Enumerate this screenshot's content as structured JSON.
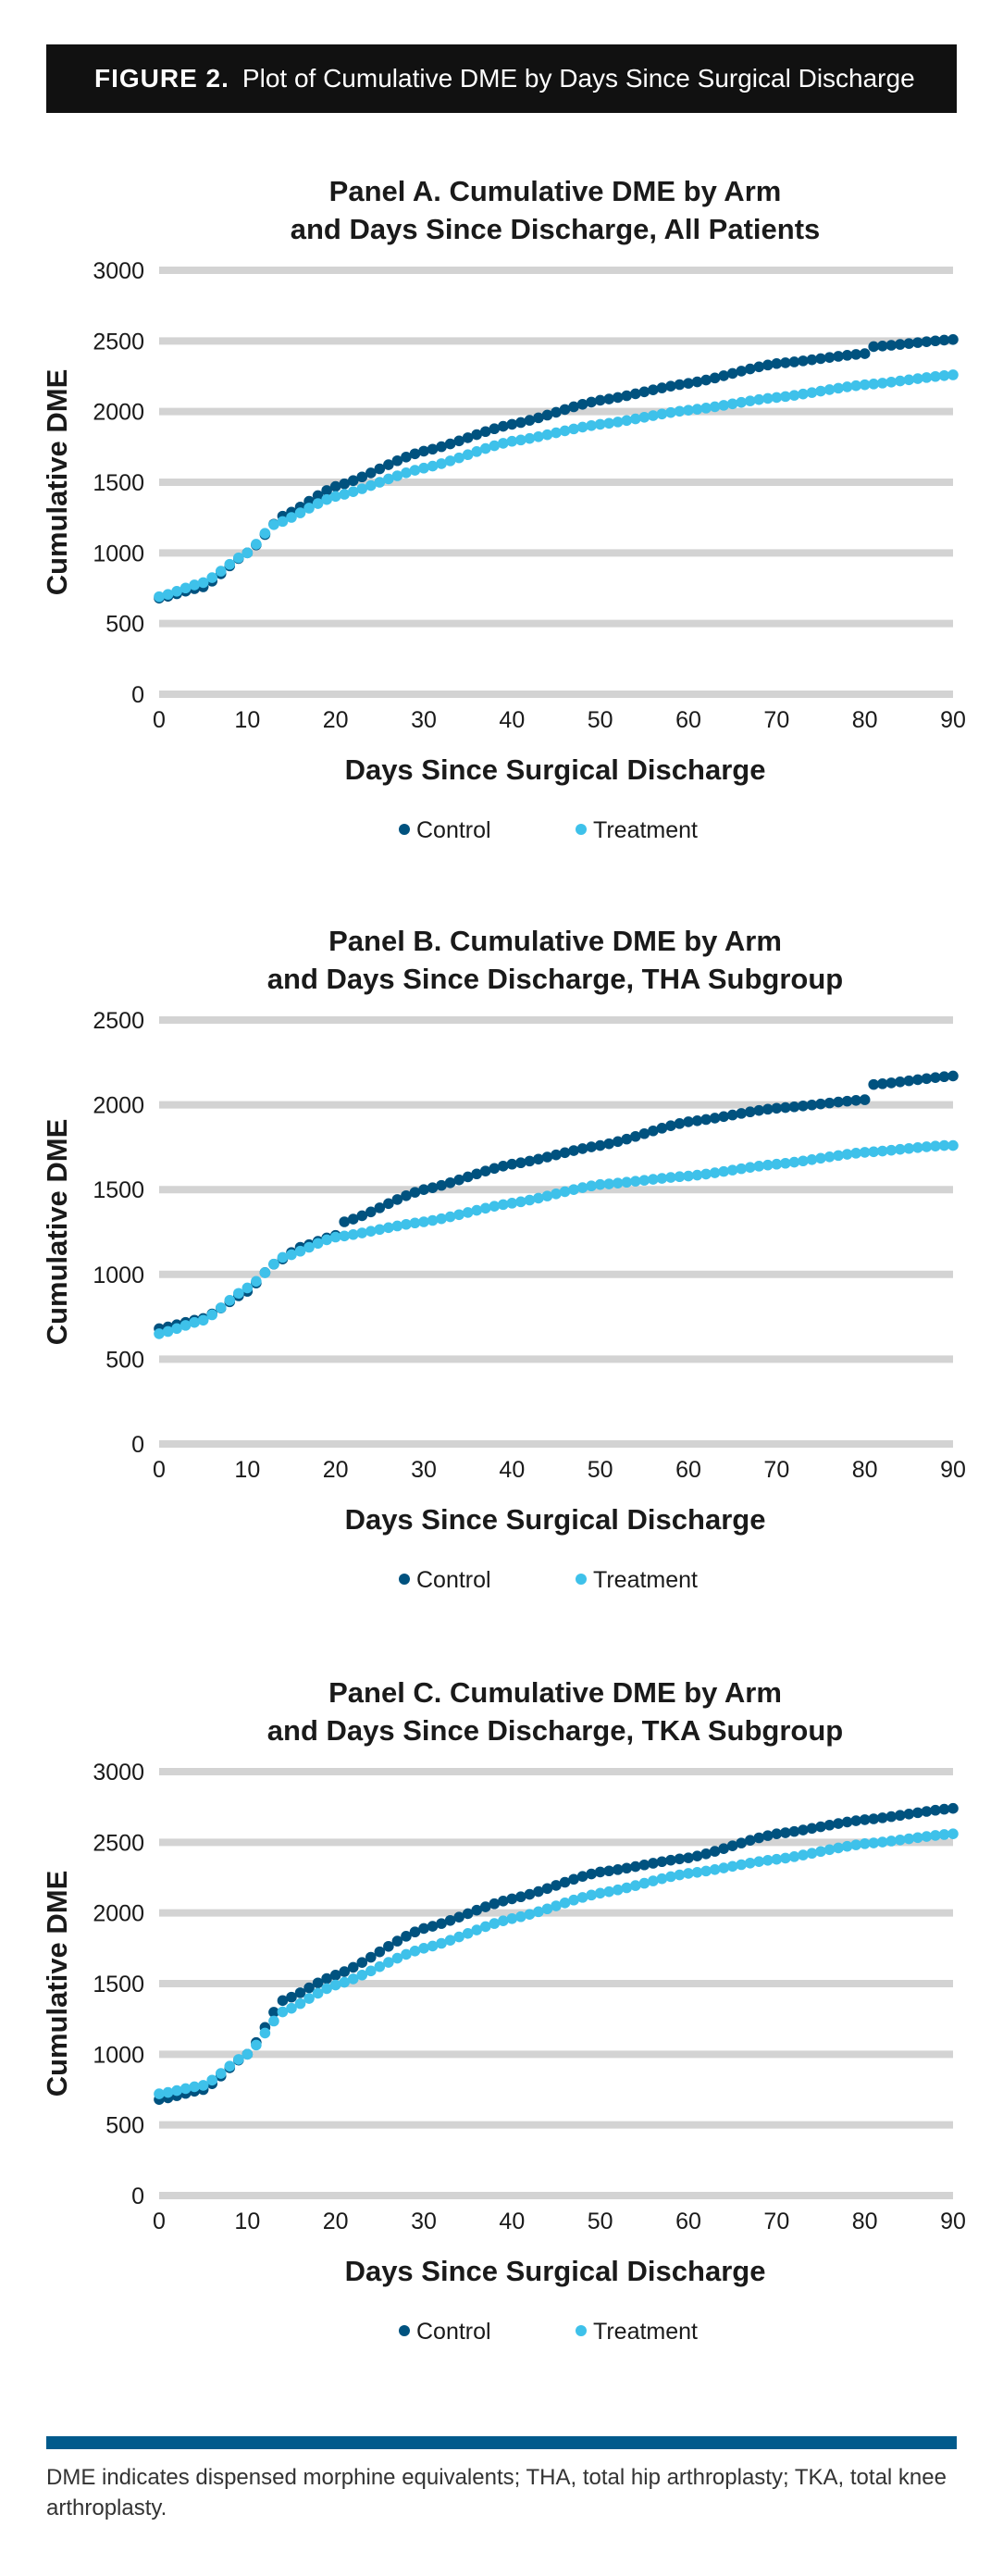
{
  "figure": {
    "label": "FIGURE 2.",
    "title": "Plot of Cumulative DME by Days Since Surgical Discharge"
  },
  "footnote": "DME indicates dispensed morphine equivalents; THA, total hip arthroplasty; TKA, total knee arthroplasty.",
  "colors": {
    "control": "#00527f",
    "treatment": "#3ec1ea",
    "grid": "#d3d3d3",
    "header_bg": "#111111",
    "footer_bar": "#005a8c"
  },
  "chart_data": [
    {
      "type": "scatter",
      "title_line1": "Panel A. Cumulative DME by Arm",
      "title_line2": "and Days Since Discharge, All Patients",
      "xlabel": "Days Since Surgical Discharge",
      "ylabel": "Cumulative DME",
      "xlim": [
        0,
        90
      ],
      "ylim": [
        0,
        3000
      ],
      "xticks": [
        0,
        10,
        20,
        30,
        40,
        50,
        60,
        70,
        80,
        90
      ],
      "yticks": [
        0,
        500,
        1000,
        1500,
        2000,
        2500,
        3000
      ],
      "legend": [
        "Control",
        "Treatment"
      ],
      "series": [
        {
          "name": "Control",
          "anchors": [
            [
              0,
              680
            ],
            [
              5,
              760
            ],
            [
              10,
              1000
            ],
            [
              14,
              1260
            ],
            [
              20,
              1470
            ],
            [
              30,
              1720
            ],
            [
              40,
              1910
            ],
            [
              50,
              2080
            ],
            [
              60,
              2200
            ],
            [
              70,
              2340
            ],
            [
              80,
              2410
            ],
            [
              81,
              2460
            ],
            [
              90,
              2510
            ]
          ]
        },
        {
          "name": "Treatment",
          "anchors": [
            [
              0,
              690
            ],
            [
              5,
              790
            ],
            [
              10,
              1000
            ],
            [
              13,
              1200
            ],
            [
              20,
              1400
            ],
            [
              30,
              1600
            ],
            [
              40,
              1790
            ],
            [
              50,
              1910
            ],
            [
              60,
              2010
            ],
            [
              70,
              2100
            ],
            [
              80,
              2190
            ],
            [
              90,
              2260
            ]
          ]
        }
      ]
    },
    {
      "type": "scatter",
      "title_line1": "Panel B. Cumulative DME by Arm",
      "title_line2": "and Days Since Discharge, THA Subgroup",
      "xlabel": "Days Since Surgical Discharge",
      "ylabel": "Cumulative DME",
      "xlim": [
        0,
        90
      ],
      "ylim": [
        0,
        2500
      ],
      "xticks": [
        0,
        10,
        20,
        30,
        40,
        50,
        60,
        70,
        80,
        90
      ],
      "yticks": [
        0,
        500,
        1000,
        1500,
        2000,
        2500
      ],
      "legend": [
        "Control",
        "Treatment"
      ],
      "series": [
        {
          "name": "Control",
          "anchors": [
            [
              0,
              680
            ],
            [
              5,
              740
            ],
            [
              10,
              900
            ],
            [
              13,
              1060
            ],
            [
              16,
              1160
            ],
            [
              20,
              1230
            ],
            [
              21,
              1310
            ],
            [
              30,
              1500
            ],
            [
              40,
              1650
            ],
            [
              50,
              1760
            ],
            [
              60,
              1900
            ],
            [
              70,
              1980
            ],
            [
              80,
              2030
            ],
            [
              81,
              2120
            ],
            [
              90,
              2170
            ]
          ]
        },
        {
          "name": "Treatment",
          "anchors": [
            [
              0,
              650
            ],
            [
              5,
              730
            ],
            [
              10,
              920
            ],
            [
              14,
              1100
            ],
            [
              20,
              1220
            ],
            [
              30,
              1310
            ],
            [
              40,
              1420
            ],
            [
              50,
              1530
            ],
            [
              60,
              1580
            ],
            [
              70,
              1650
            ],
            [
              80,
              1720
            ],
            [
              89,
              1760
            ]
          ]
        }
      ]
    },
    {
      "type": "scatter",
      "title_line1": "Panel C. Cumulative DME by Arm",
      "title_line2": "and Days Since Discharge, TKA Subgroup",
      "xlabel": "Days Since Surgical Discharge",
      "ylabel": "Cumulative DME",
      "xlim": [
        0,
        90
      ],
      "ylim": [
        0,
        3000
      ],
      "xticks": [
        0,
        10,
        20,
        30,
        40,
        50,
        60,
        70,
        80,
        90
      ],
      "yticks": [
        0,
        500,
        1000,
        1500,
        2000,
        2500,
        3000
      ],
      "legend": [
        "Control",
        "Treatment"
      ],
      "series": [
        {
          "name": "Control",
          "anchors": [
            [
              0,
              680
            ],
            [
              5,
              750
            ],
            [
              10,
              1000
            ],
            [
              14,
              1380
            ],
            [
              20,
              1560
            ],
            [
              30,
              1890
            ],
            [
              40,
              2100
            ],
            [
              50,
              2290
            ],
            [
              60,
              2390
            ],
            [
              70,
              2560
            ],
            [
              80,
              2660
            ],
            [
              90,
              2740
            ]
          ]
        },
        {
          "name": "Treatment",
          "anchors": [
            [
              0,
              720
            ],
            [
              5,
              780
            ],
            [
              10,
              1000
            ],
            [
              14,
              1300
            ],
            [
              20,
              1490
            ],
            [
              30,
              1750
            ],
            [
              40,
              1960
            ],
            [
              50,
              2140
            ],
            [
              60,
              2280
            ],
            [
              70,
              2380
            ],
            [
              80,
              2490
            ],
            [
              90,
              2560
            ]
          ]
        }
      ]
    }
  ]
}
